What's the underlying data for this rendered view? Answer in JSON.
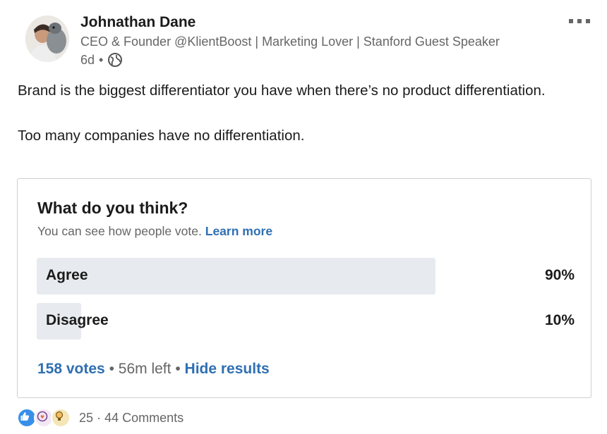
{
  "author": {
    "name": "Johnathan Dane",
    "headline": "CEO & Founder @KlientBoost | Marketing Lover | Stanford Guest Speaker",
    "time": "6d",
    "visibility_icon": "globe-icon"
  },
  "post": {
    "paragraph1": "Brand is the biggest differentiator you have when there’s no product differentiation.",
    "paragraph2": "Too many companies have no differentiation."
  },
  "poll": {
    "question": "What do you think?",
    "subtitle": "You can see how people vote.",
    "learn_more": "Learn more",
    "options": [
      {
        "label": "Agree",
        "percent_text": "90%",
        "fraction": 0.9
      },
      {
        "label": "Disagree",
        "percent_text": "10%",
        "fraction": 0.1
      }
    ],
    "votes": "158 votes",
    "separator1": "•",
    "time_left": "56m left",
    "separator2": "•",
    "hide_results": "Hide results"
  },
  "social": {
    "reaction_icons": [
      "like-icon",
      "love-icon",
      "insightful-icon"
    ],
    "reaction_count": "25",
    "dot": "·",
    "comments": "44 Comments"
  },
  "colors": {
    "link": "#2f6fb2",
    "bar": "#e7ebef",
    "muted": "#666666"
  }
}
